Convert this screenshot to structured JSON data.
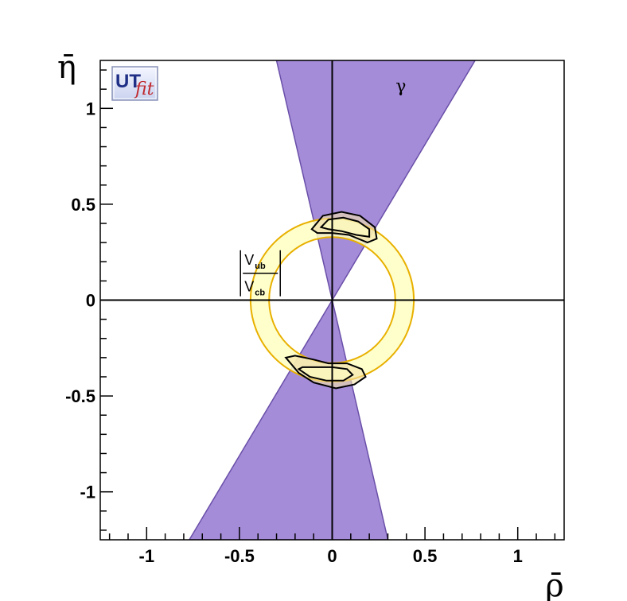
{
  "chart_data": {
    "type": "contour",
    "title": "",
    "xlabel": "ρ̄",
    "ylabel": "η̄",
    "xlim": [
      -1.25,
      1.25
    ],
    "ylim": [
      -1.25,
      1.25
    ],
    "x_ticks": [
      -1,
      -0.5,
      0,
      0.5,
      1
    ],
    "x_tick_labels": [
      "-1",
      "-0.5",
      "0",
      "0.5",
      "1"
    ],
    "y_ticks": [
      -1,
      -0.5,
      0,
      0.5,
      1
    ],
    "y_tick_labels": [
      "-1",
      "-0.5",
      "0",
      "0.5",
      "1"
    ],
    "grid": false,
    "regions": [
      {
        "name": "γ",
        "color": "#a58cd9",
        "edge_color": "#6a4fa8",
        "upper_wedge": [
          [
            -0.3,
            1.25
          ],
          [
            0.77,
            1.25
          ],
          [
            0,
            0
          ]
        ],
        "lower_wedge": [
          [
            0.3,
            -1.25
          ],
          [
            -0.77,
            -1.25
          ],
          [
            0,
            0
          ]
        ]
      },
      {
        "name": "Vub/Vcb",
        "color": "#ffffc2",
        "edge_color": "#e8b000",
        "center": [
          0,
          0
        ],
        "r_inner": 0.34,
        "r_outer": 0.44
      }
    ],
    "contours": [
      {
        "level": "outer",
        "upper": [
          [
            -0.11,
            0.37
          ],
          [
            -0.05,
            0.44
          ],
          [
            0.05,
            0.46
          ],
          [
            0.15,
            0.44
          ],
          [
            0.23,
            0.38
          ],
          [
            0.24,
            0.32
          ],
          [
            0.19,
            0.3
          ],
          [
            0.09,
            0.34
          ],
          [
            0.0,
            0.35
          ],
          [
            -0.08,
            0.35
          ],
          [
            -0.11,
            0.37
          ]
        ],
        "lower": [
          [
            -0.25,
            -0.3
          ],
          [
            -0.18,
            -0.38
          ],
          [
            -0.1,
            -0.43
          ],
          [
            0.02,
            -0.46
          ],
          [
            0.12,
            -0.44
          ],
          [
            0.18,
            -0.4
          ],
          [
            0.16,
            -0.36
          ],
          [
            0.08,
            -0.33
          ],
          [
            -0.02,
            -0.33
          ],
          [
            -0.1,
            -0.31
          ],
          [
            -0.2,
            -0.29
          ],
          [
            -0.25,
            -0.3
          ]
        ]
      },
      {
        "level": "inner",
        "upper": [
          [
            -0.06,
            0.38
          ],
          [
            -0.02,
            0.42
          ],
          [
            0.06,
            0.43
          ],
          [
            0.14,
            0.41
          ],
          [
            0.2,
            0.37
          ],
          [
            0.2,
            0.33
          ],
          [
            0.13,
            0.34
          ],
          [
            0.05,
            0.36
          ],
          [
            -0.02,
            0.37
          ],
          [
            -0.06,
            0.38
          ]
        ],
        "lower": [
          [
            -0.18,
            -0.36
          ],
          [
            -0.12,
            -0.4
          ],
          [
            -0.03,
            -0.42
          ],
          [
            0.06,
            -0.42
          ],
          [
            0.11,
            -0.39
          ],
          [
            0.08,
            -0.36
          ],
          [
            0.0,
            -0.35
          ],
          [
            -0.08,
            -0.35
          ],
          [
            -0.16,
            -0.35
          ],
          [
            -0.18,
            -0.36
          ]
        ]
      }
    ],
    "annotations": [
      {
        "text": "γ",
        "x": 0.37,
        "y": 1.12
      },
      {
        "text": "V",
        "sub": "ub",
        "x": -0.43,
        "y": 0.21
      },
      {
        "text": "V",
        "sub": "cb",
        "x": -0.43,
        "y": 0.07
      }
    ],
    "logo": {
      "main": "UT",
      "sub": "fit"
    }
  }
}
